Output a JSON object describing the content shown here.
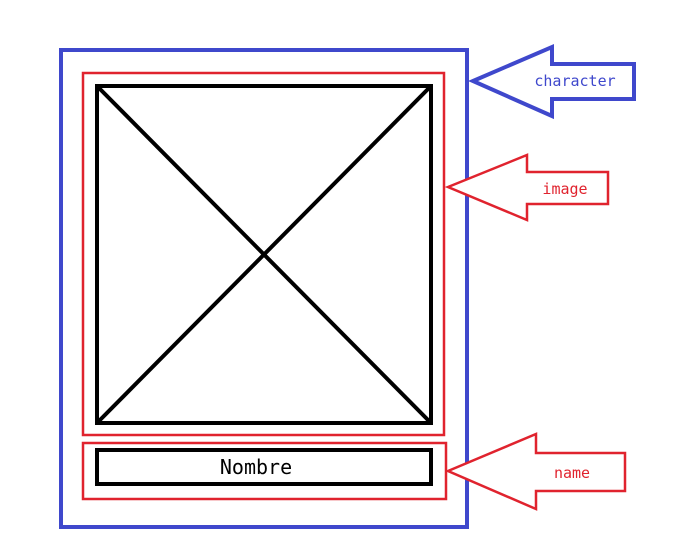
{
  "labels": {
    "character": "character",
    "image": "image",
    "name": "name"
  },
  "name_box_text": "Nombre",
  "colors": {
    "character": "#3f48cc",
    "image": "#e0232e",
    "name": "#e0232e",
    "frame": "#000000",
    "background": "#ffffff"
  }
}
